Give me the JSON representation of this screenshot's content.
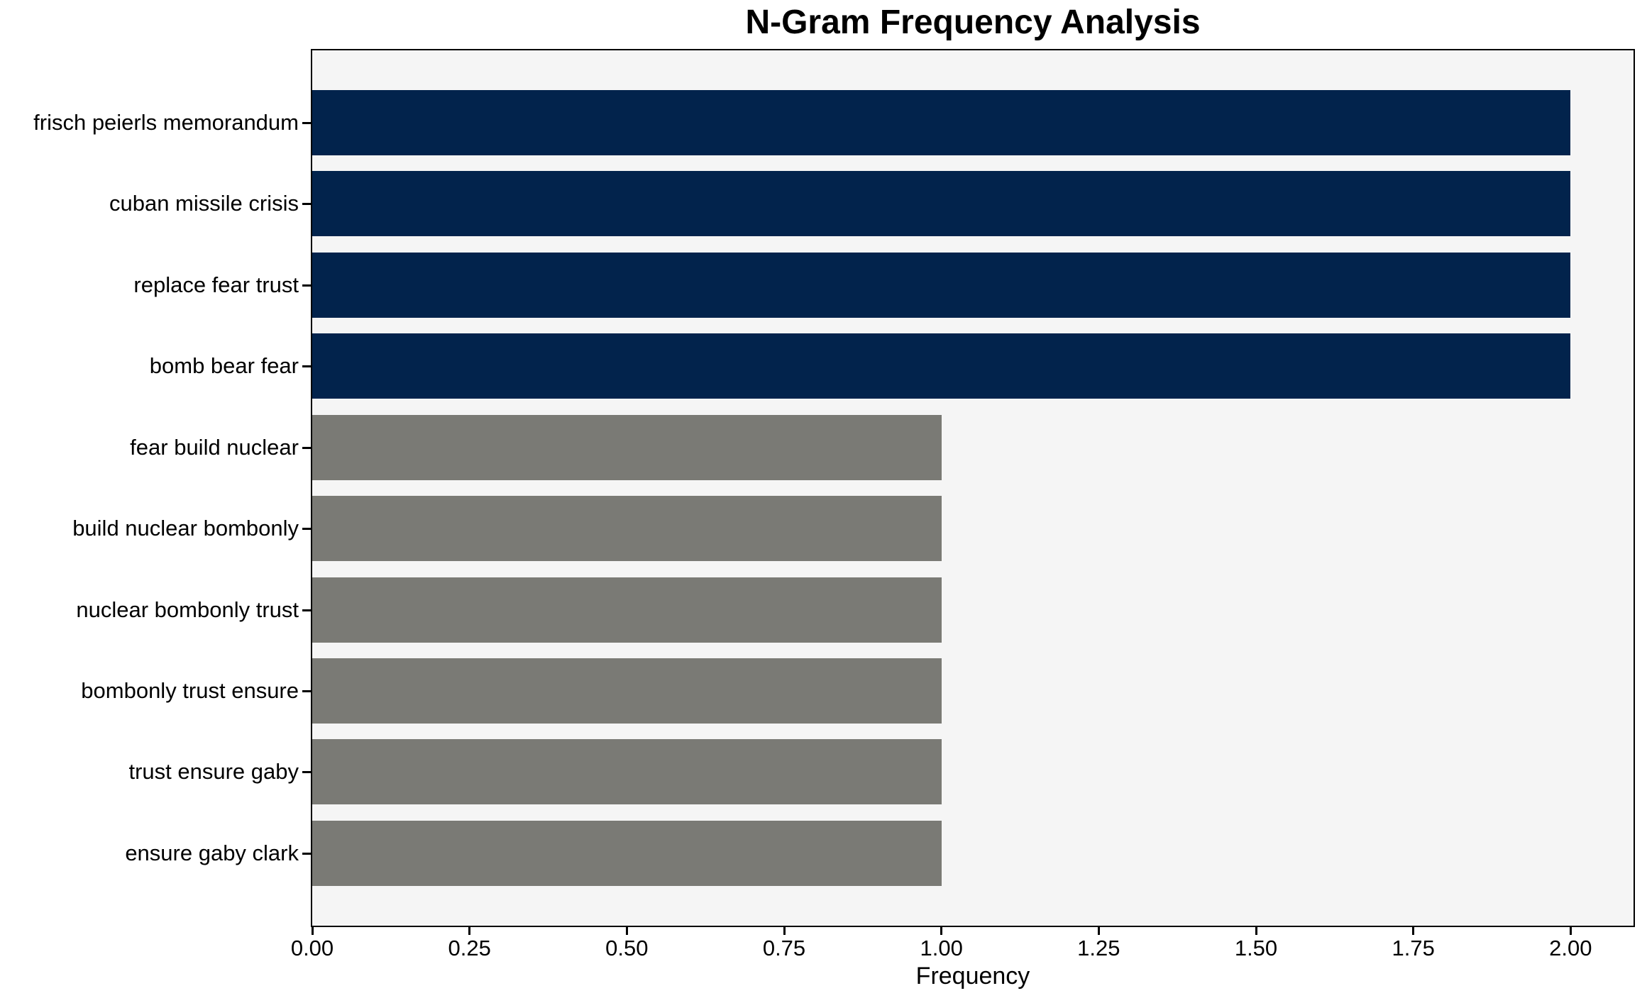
{
  "chart_data": {
    "type": "bar",
    "orientation": "horizontal",
    "title": "N-Gram Frequency Analysis",
    "xlabel": "Frequency",
    "ylabel": "",
    "categories": [
      "frisch peierls memorandum",
      "cuban missile crisis",
      "replace fear trust",
      "bomb bear fear",
      "fear build nuclear",
      "build nuclear bombonly",
      "nuclear bombonly trust",
      "bombonly trust ensure",
      "trust ensure gaby",
      "ensure gaby clark"
    ],
    "values": [
      2,
      2,
      2,
      2,
      1,
      1,
      1,
      1,
      1,
      1
    ],
    "bar_colors": [
      "#02234c",
      "#02234c",
      "#02234c",
      "#02234c",
      "#7a7a75",
      "#7a7a75",
      "#7a7a75",
      "#7a7a75",
      "#7a7a75",
      "#7a7a75"
    ],
    "xlim": [
      0,
      2.1
    ],
    "x_ticks": [
      {
        "label": "0.00",
        "value": 0.0
      },
      {
        "label": "0.25",
        "value": 0.25
      },
      {
        "label": "0.50",
        "value": 0.5
      },
      {
        "label": "0.75",
        "value": 0.75
      },
      {
        "label": "1.00",
        "value": 1.0
      },
      {
        "label": "1.25",
        "value": 1.25
      },
      {
        "label": "1.50",
        "value": 1.5
      },
      {
        "label": "1.75",
        "value": 1.75
      },
      {
        "label": "2.00",
        "value": 2.0
      }
    ],
    "grid": false,
    "legend_position": "none",
    "colors": {
      "highlight_bar": "#02234c",
      "default_bar": "#7a7a75",
      "plot_background": "#f5f5f5",
      "spine": "#000000"
    }
  }
}
